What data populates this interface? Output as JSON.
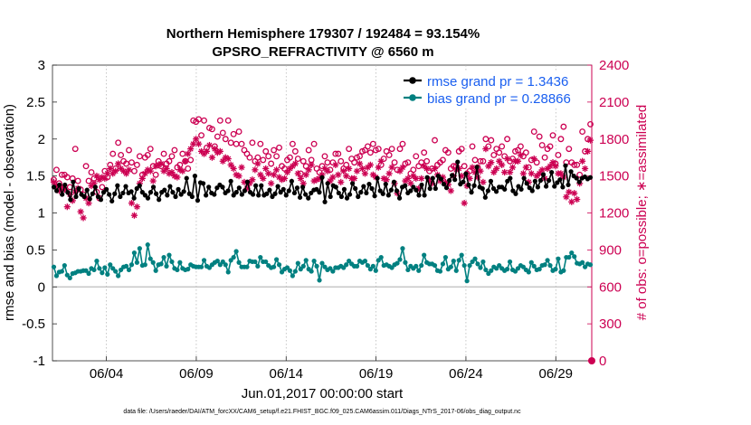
{
  "title_line1": "Northern Hemisphere 179307 / 192484 = 93.154%",
  "title_line2": "GPSRO_REFRACTIVITY @ 6560 m",
  "footer": "data file: /Users/raeder/DAI/ATM_forcXX/CAM6_setup/f.e21.FHIST_BGC.f09_025.CAM6assim.011/Diags_NTrS_2017-06/obs_diag_output.nc",
  "chart_data": {
    "type": "line",
    "title": "Northern Hemisphere 179307 / 192484 = 93.154%",
    "subtitle": "GPSRO_REFRACTIVITY @ 6560 m",
    "xlabel": "Jun.01,2017 00:00:00 start",
    "ylabel_left": "rmse and bias (model - observation)",
    "ylabel_right": "# of obs: o=possible; ∗=assimilated",
    "xlim": [
      0,
      30
    ],
    "ylim_left": [
      -1,
      3
    ],
    "ylim_right": [
      0,
      2400
    ],
    "left_ticks": [
      "-1",
      "-0.5",
      "0",
      "0.5",
      "1",
      "1.5",
      "2",
      "2.5",
      "3"
    ],
    "right_ticks": [
      "0",
      "300",
      "600",
      "900",
      "1200",
      "1500",
      "1800",
      "2100",
      "2400"
    ],
    "x_ticks": [
      {
        "label": "06/04",
        "value": 3
      },
      {
        "label": "06/09",
        "value": 8
      },
      {
        "label": "06/14",
        "value": 13
      },
      {
        "label": "06/19",
        "value": 18
      },
      {
        "label": "06/24",
        "value": 23
      },
      {
        "label": "06/29",
        "value": 28
      }
    ],
    "zero_line": 0,
    "legend": {
      "placement": "top-right",
      "entries": [
        "rmse grand pr = 1.3436",
        "bias grand pr = 0.28866"
      ]
    },
    "series": [
      {
        "name": "rmse grand pr = 1.3436",
        "color": "#000000",
        "marker": "dot",
        "axis": "left",
        "values": [
          1.35,
          1.3,
          1.38,
          1.25,
          1.38,
          1.28,
          1.18,
          1.42,
          1.22,
          1.33,
          1.25,
          1.22,
          1.31,
          1.19,
          1.26,
          1.35,
          1.22,
          1.18,
          1.28,
          1.32,
          1.25,
          1.16,
          1.26,
          1.37,
          1.22,
          1.27,
          1.36,
          1.27,
          1.29,
          1.2,
          1.33,
          1.37,
          1.28,
          1.24,
          1.2,
          1.28,
          1.35,
          1.26,
          1.18,
          1.28,
          1.31,
          1.24,
          1.36,
          1.28,
          1.22,
          1.32,
          1.25,
          1.29,
          1.47,
          1.26,
          1.22,
          1.5,
          1.17,
          1.41,
          1.4,
          1.24,
          1.35,
          1.27,
          1.25,
          1.34,
          1.38,
          1.35,
          1.27,
          1.3,
          1.43,
          1.24,
          1.28,
          1.34,
          1.25,
          1.3,
          1.42,
          1.28,
          1.25,
          1.37,
          1.24,
          1.37,
          1.24,
          1.26,
          1.31,
          1.22,
          1.26,
          1.36,
          1.28,
          1.32,
          1.24,
          1.3,
          1.43,
          1.27,
          1.34,
          1.21,
          1.35,
          1.25,
          1.2,
          1.27,
          1.31,
          1.32,
          1.28,
          1.48,
          1.15,
          1.4,
          1.22,
          1.37,
          1.35,
          1.27,
          1.22,
          1.32,
          1.2,
          1.25,
          1.4,
          1.33,
          1.22,
          1.28,
          1.36,
          1.27,
          1.39,
          1.33,
          1.23,
          1.47,
          1.3,
          1.26,
          1.39,
          1.24,
          1.31,
          1.42,
          1.3,
          1.2,
          1.35,
          1.37,
          1.27,
          1.3,
          1.35,
          1.31,
          1.24,
          1.38,
          1.24,
          1.48,
          1.33,
          1.47,
          1.33,
          1.5,
          1.46,
          1.39,
          1.34,
          1.44,
          1.51,
          1.45,
          1.69,
          1.39,
          1.42,
          1.53,
          1.38,
          1.28,
          1.37,
          1.62,
          1.35,
          1.33,
          1.21,
          1.3,
          1.43,
          1.33,
          1.29,
          1.35,
          1.35,
          1.32,
          1.43,
          1.47,
          1.3,
          1.26,
          1.36,
          1.32,
          1.47,
          1.4,
          1.34,
          1.3,
          1.43,
          1.35,
          1.44,
          1.52,
          1.36,
          1.44,
          1.55,
          1.36,
          1.41,
          1.45,
          1.35,
          1.64,
          1.38,
          1.56,
          1.5,
          1.47,
          1.42,
          1.47,
          1.49,
          1.46,
          1.48
        ]
      },
      {
        "name": "bias grand pr = 0.28866",
        "color": "#008080",
        "marker": "dot",
        "axis": "left",
        "values": [
          0.27,
          0.15,
          0.2,
          0.21,
          0.29,
          0.16,
          0.12,
          0.18,
          0.19,
          0.21,
          0.21,
          0.22,
          0.22,
          0.18,
          0.25,
          0.23,
          0.35,
          0.25,
          0.19,
          0.26,
          0.17,
          0.3,
          0.25,
          0.21,
          0.15,
          0.23,
          0.27,
          0.28,
          0.23,
          0.3,
          0.46,
          0.33,
          0.52,
          0.29,
          0.3,
          0.57,
          0.38,
          0.33,
          0.22,
          0.3,
          0.31,
          0.4,
          0.28,
          0.43,
          0.34,
          0.25,
          0.23,
          0.33,
          0.25,
          0.23,
          0.24,
          0.3,
          0.28,
          0.27,
          0.27,
          0.27,
          0.36,
          0.28,
          0.26,
          0.3,
          0.33,
          0.35,
          0.3,
          0.34,
          0.3,
          0.2,
          0.36,
          0.4,
          0.48,
          0.33,
          0.27,
          0.27,
          0.27,
          0.35,
          0.34,
          0.34,
          0.28,
          0.4,
          0.34,
          0.34,
          0.29,
          0.26,
          0.27,
          0.37,
          0.3,
          0.2,
          0.24,
          0.26,
          0.22,
          0.15,
          0.21,
          0.32,
          0.24,
          0.28,
          0.36,
          0.24,
          0.21,
          0.35,
          0.28,
          0.09,
          0.32,
          0.27,
          0.23,
          0.25,
          0.21,
          0.26,
          0.26,
          0.28,
          0.26,
          0.3,
          0.35,
          0.31,
          0.28,
          0.28,
          0.35,
          0.33,
          0.35,
          0.29,
          0.24,
          0.28,
          0.22,
          0.36,
          0.4,
          0.29,
          0.3,
          0.28,
          0.26,
          0.3,
          0.32,
          0.37,
          0.52,
          0.33,
          0.23,
          0.28,
          0.25,
          0.28,
          0.22,
          0.29,
          0.43,
          0.33,
          0.31,
          0.31,
          0.29,
          0.22,
          0.21,
          0.31,
          0.4,
          0.24,
          0.27,
          0.35,
          0.22,
          0.36,
          0.43,
          0.29,
          0.08,
          0.29,
          0.34,
          0.38,
          0.31,
          0.26,
          0.34,
          0.23,
          0.18,
          0.22,
          0.27,
          0.25,
          0.29,
          0.25,
          0.22,
          0.24,
          0.34,
          0.23,
          0.21,
          0.25,
          0.29,
          0.27,
          0.23,
          0.2,
          0.33,
          0.28,
          0.23,
          0.24,
          0.29,
          0.3,
          0.36,
          0.29,
          0.22,
          0.24,
          0.38,
          0.2,
          0.22,
          0.4,
          0.4,
          0.46,
          0.41,
          0.32,
          0.31,
          0.33,
          0.27,
          0.31,
          0.3
        ]
      },
      {
        "name": "obs possible",
        "color": "#cc0052",
        "marker": "circle",
        "axis": "right",
        "values": [
          1470,
          1550,
          1440,
          1510,
          1510,
          1490,
          1410,
          1480,
          1720,
          1460,
          1390,
          1350,
          1580,
          1460,
          1530,
          1480,
          1370,
          1320,
          1410,
          1540,
          1490,
          1590,
          1680,
          1560,
          1770,
          1670,
          1620,
          1600,
          1710,
          1610,
          1540,
          1590,
          1660,
          1510,
          1650,
          1670,
          1720,
          1580,
          1510,
          1620,
          1580,
          1680,
          1600,
          1620,
          1660,
          1710,
          1570,
          1590,
          1680,
          1620,
          1560,
          1630,
          1950,
          1940,
          1960,
          1830,
          1950,
          1730,
          1890,
          1880,
          1740,
          1820,
          1950,
          1850,
          1800,
          1950,
          1770,
          1840,
          1760,
          1860,
          1760,
          1710,
          1680,
          1650,
          1770,
          1620,
          1650,
          1760,
          1630,
          1700,
          1660,
          1600,
          1710,
          1660,
          1730,
          1580,
          1560,
          1630,
          1650,
          1760,
          1700,
          1640,
          1520,
          1620,
          1580,
          1710,
          1630,
          1760,
          1560,
          1530,
          1580,
          1660,
          1610,
          1550,
          1610,
          1680,
          1680,
          1620,
          1560,
          1590,
          1720,
          1640,
          1610,
          1650,
          1660,
          1700,
          1710,
          1740,
          1690,
          1760,
          1710,
          1720,
          1590,
          1640,
          1700,
          1670,
          1720,
          1610,
          1550,
          1720,
          1760,
          1600,
          1610,
          1520,
          1550,
          1660,
          1580,
          1610,
          1690,
          1620,
          1540,
          1560,
          1790,
          1590,
          1610,
          1630,
          1710,
          1690,
          1560,
          1580,
          1580,
          1700,
          1720,
          1580,
          1520,
          1540,
          1740,
          1630,
          1570,
          1620,
          1620,
          1800,
          1740,
          1790,
          1670,
          1720,
          1690,
          1740,
          1660,
          1800,
          1620,
          1640,
          1700,
          1710,
          1740,
          1660,
          1690,
          1570,
          1630,
          1860,
          1610,
          1820,
          1750,
          1650,
          1720,
          1740,
          1830,
          1600,
          1670,
          1800,
          1900,
          1610,
          1720,
          1610,
          1590,
          1590,
          1510,
          1860,
          1700,
          1800,
          1920
        ]
      },
      {
        "name": "obs assimilated",
        "color": "#cc0052",
        "marker": "asterisk",
        "axis": "right",
        "values": [
          1450,
          1420,
          1380,
          1410,
          1390,
          1250,
          1350,
          1300,
          1370,
          1400,
          1210,
          1160,
          1320,
          1280,
          1420,
          1440,
          1500,
          1470,
          1490,
          1480,
          1520,
          1560,
          1520,
          1540,
          1600,
          1560,
          1540,
          1520,
          1550,
          1280,
          1180,
          1250,
          1440,
          1480,
          1520,
          1550,
          1540,
          1460,
          1580,
          1590,
          1600,
          1540,
          1560,
          1520,
          1530,
          1500,
          1490,
          1550,
          1540,
          1620,
          1680,
          1720,
          1760,
          1800,
          1760,
          1700,
          1680,
          1700,
          1750,
          1650,
          1720,
          1690,
          1700,
          1620,
          1650,
          1640,
          1590,
          1560,
          1510,
          1500,
          1570,
          1450,
          1400,
          1440,
          1470,
          1550,
          1600,
          1510,
          1480,
          1560,
          1520,
          1440,
          1510,
          1550,
          1490,
          1470,
          1480,
          1530,
          1560,
          1580,
          1600,
          1520,
          1480,
          1440,
          1510,
          1550,
          1590,
          1460,
          1470,
          1480,
          1510,
          1560,
          1540,
          1460,
          1490,
          1590,
          1510,
          1450,
          1540,
          1500,
          1560,
          1480,
          1480,
          1540,
          1600,
          1560,
          1520,
          1570,
          1590,
          1510,
          1490,
          1570,
          1620,
          1480,
          1470,
          1520,
          1570,
          1440,
          1360,
          1540,
          1570,
          1460,
          1480,
          1440,
          1500,
          1480,
          1400,
          1480,
          1580,
          1560,
          1470,
          1440,
          1560,
          1510,
          1460,
          1490,
          1450,
          1430,
          1380,
          1500,
          1550,
          1560,
          1500,
          1280,
          1420,
          1480,
          1570,
          1530,
          1490,
          1540,
          1450,
          1720,
          1580,
          1610,
          1530,
          1560,
          1620,
          1590,
          1530,
          1640,
          1530,
          1570,
          1620,
          1620,
          1670,
          1520,
          1570,
          1450,
          1520,
          1640,
          1500,
          1520,
          1550,
          1480,
          1560,
          1580,
          1610,
          1580,
          1520,
          1520,
          1490,
          1330,
          1370,
          1290,
          1360,
          1310,
          1440,
          1620,
          1560,
          1700,
          1790
        ]
      }
    ]
  }
}
